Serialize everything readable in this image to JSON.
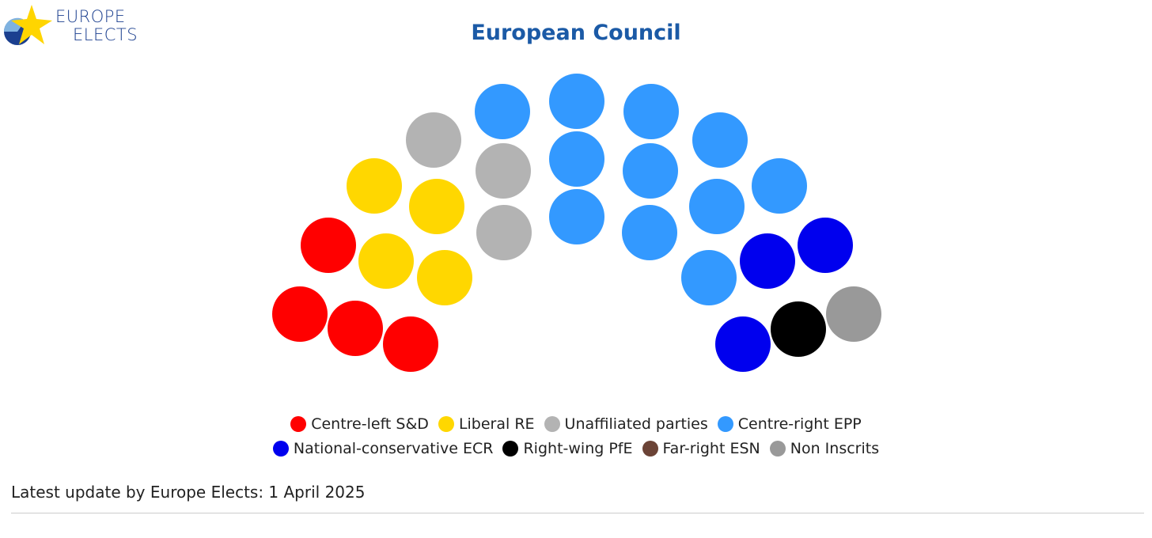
{
  "logo": {
    "line1": "EUROPE",
    "line2": "ELECTS"
  },
  "chart_data": {
    "type": "parliament",
    "title": "European Council",
    "categories": [
      "Centre-left S&D",
      "Liberal RE",
      "Unaffiliated parties",
      "Centre-right EPP",
      "National-conservative ECR",
      "Right-wing PfE",
      "Far-right ESN",
      "Non Inscrits"
    ],
    "values": [
      4,
      4,
      3,
      11,
      3,
      1,
      0,
      1
    ],
    "colors": [
      "#ff0000",
      "#ffd700",
      "#b3b3b3",
      "#3399ff",
      "#0000ee",
      "#000000",
      "#6b4336",
      "#999999"
    ],
    "footnote": "Latest update by Europe Elects: 1 April 2025"
  }
}
